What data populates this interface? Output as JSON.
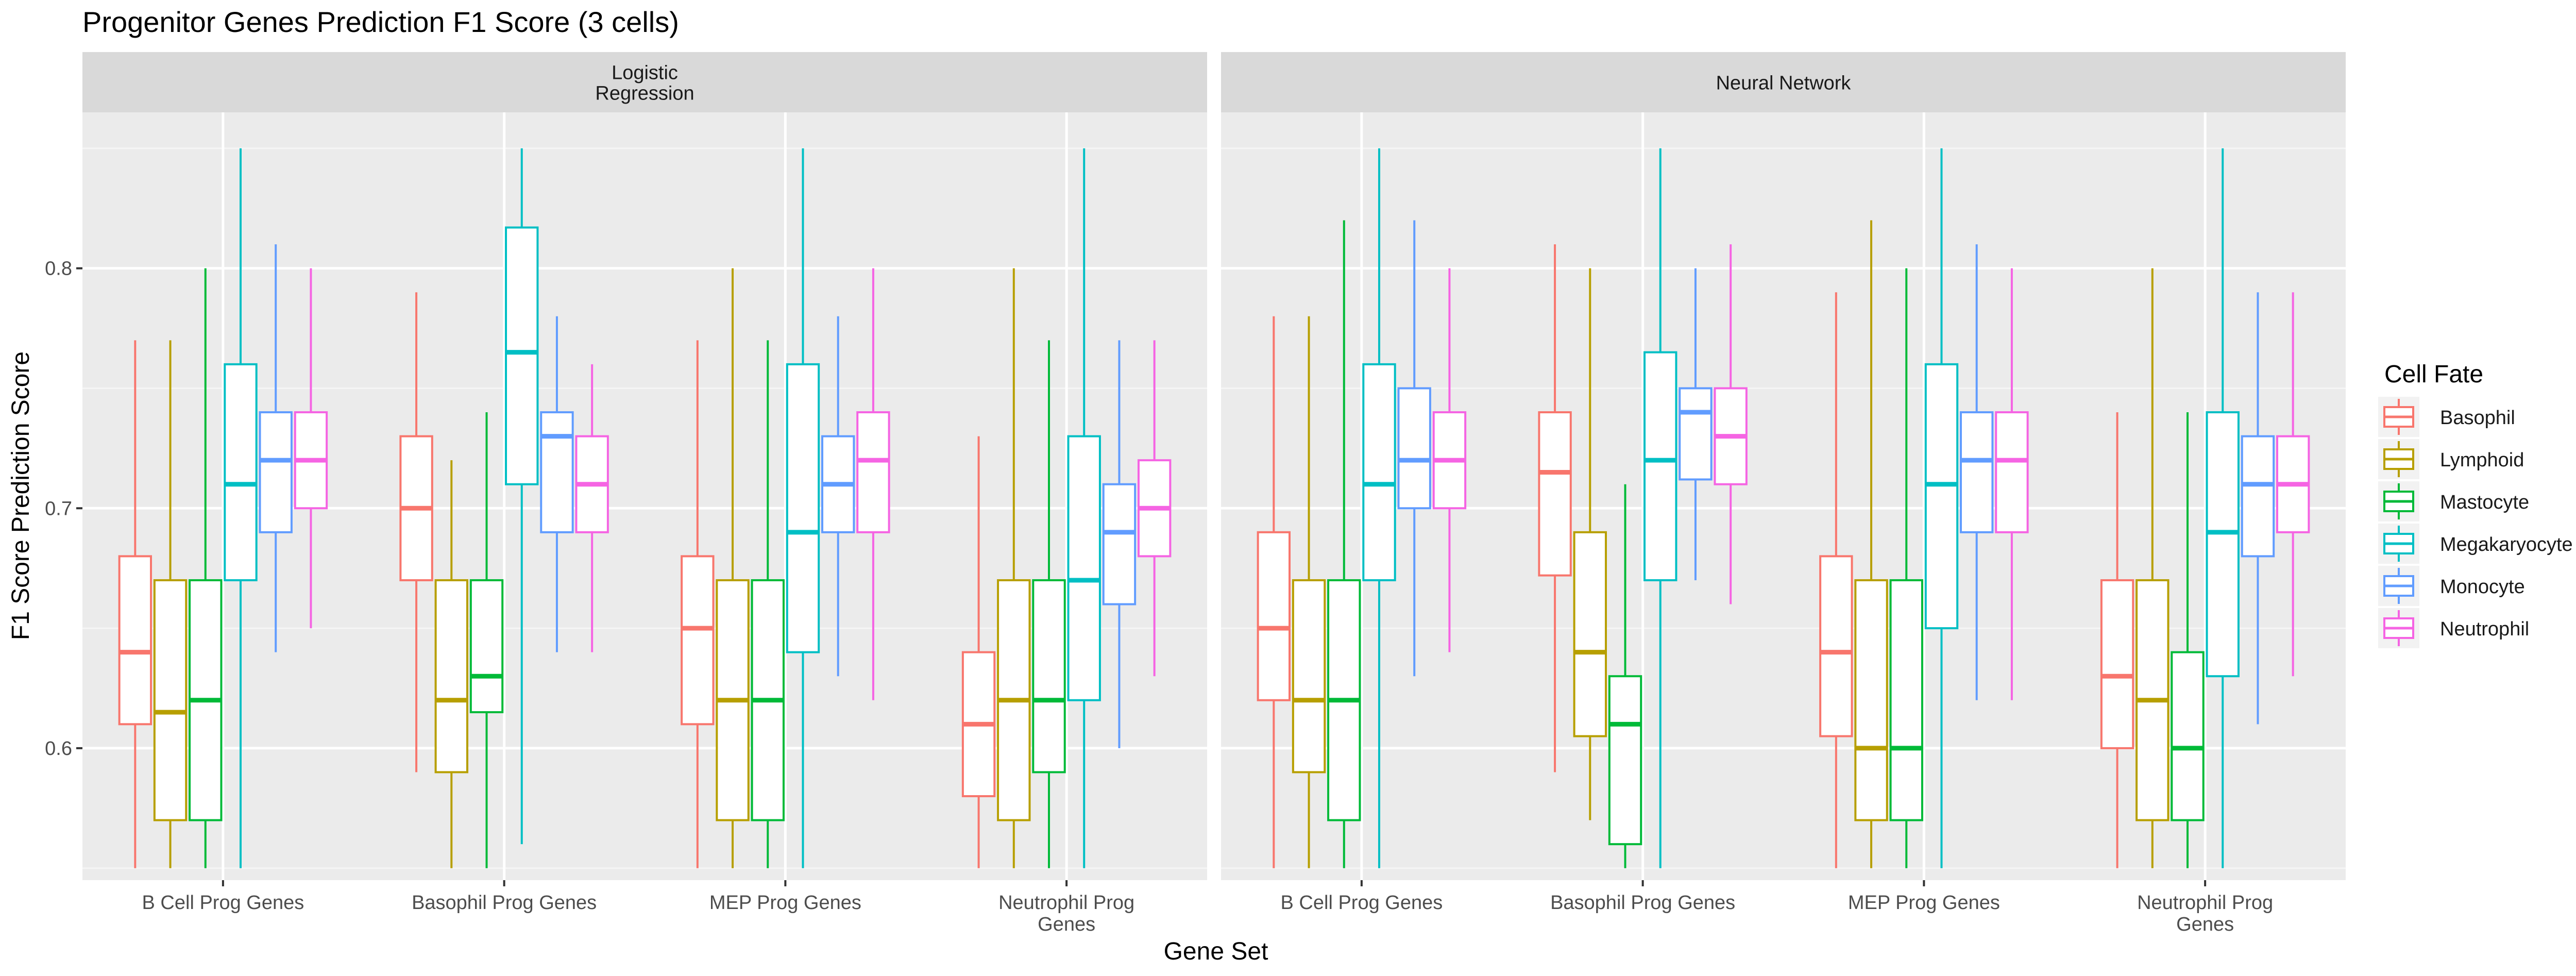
{
  "chart_data": {
    "type": "boxplot",
    "title": "Progenitor Genes Prediction F1 Score (3 cells)",
    "xlabel": "Gene Set",
    "ylabel": "F1 Score Prediction Score",
    "ylim": [
      0.545,
      0.865
    ],
    "y_ticks": [
      0.6,
      0.7,
      0.8
    ],
    "y_tick_labels": [
      "0.6",
      "0.7",
      "0.8"
    ],
    "grid": true,
    "legend_position": "right",
    "legend_title": "Cell Fate",
    "categories": [
      [
        "B Cell Prog Genes"
      ],
      [
        "Basophil Prog Genes"
      ],
      [
        "MEP Prog Genes"
      ],
      [
        "Neutrophil Prog",
        "Genes"
      ]
    ],
    "series": [
      {
        "name": "Basophil",
        "color": "#F8766D"
      },
      {
        "name": "Lymphoid",
        "color": "#B79F00"
      },
      {
        "name": "Mastocyte",
        "color": "#00BA38"
      },
      {
        "name": "Megakaryocyte",
        "color": "#00BFC4"
      },
      {
        "name": "Monocyte",
        "color": "#619CFF"
      },
      {
        "name": "Neutrophil",
        "color": "#F564E3"
      }
    ],
    "panels": [
      {
        "title": [
          "Logistic",
          "Regression"
        ],
        "boxes": [
          [
            [
              0.55,
              0.61,
              0.64,
              0.68,
              0.77
            ],
            [
              0.55,
              0.57,
              0.615,
              0.67,
              0.77
            ],
            [
              0.55,
              0.57,
              0.62,
              0.67,
              0.8
            ],
            [
              0.55,
              0.67,
              0.71,
              0.76,
              0.85
            ],
            [
              0.64,
              0.69,
              0.72,
              0.74,
              0.81
            ],
            [
              0.65,
              0.7,
              0.72,
              0.74,
              0.8
            ]
          ],
          [
            [
              0.59,
              0.67,
              0.7,
              0.73,
              0.79
            ],
            [
              0.55,
              0.59,
              0.62,
              0.67,
              0.72
            ],
            [
              0.55,
              0.615,
              0.63,
              0.67,
              0.74
            ],
            [
              0.56,
              0.71,
              0.765,
              0.817,
              0.85
            ],
            [
              0.64,
              0.69,
              0.73,
              0.74,
              0.78
            ],
            [
              0.64,
              0.69,
              0.71,
              0.73,
              0.76
            ]
          ],
          [
            [
              0.55,
              0.61,
              0.65,
              0.68,
              0.77
            ],
            [
              0.55,
              0.57,
              0.62,
              0.67,
              0.8
            ],
            [
              0.55,
              0.57,
              0.62,
              0.67,
              0.77
            ],
            [
              0.55,
              0.64,
              0.69,
              0.76,
              0.85
            ],
            [
              0.63,
              0.69,
              0.71,
              0.73,
              0.78
            ],
            [
              0.62,
              0.69,
              0.72,
              0.74,
              0.8
            ]
          ],
          [
            [
              0.55,
              0.58,
              0.61,
              0.64,
              0.73
            ],
            [
              0.55,
              0.57,
              0.62,
              0.67,
              0.8
            ],
            [
              0.55,
              0.59,
              0.62,
              0.67,
              0.77
            ],
            [
              0.55,
              0.62,
              0.67,
              0.73,
              0.85
            ],
            [
              0.6,
              0.66,
              0.69,
              0.71,
              0.77
            ],
            [
              0.63,
              0.68,
              0.7,
              0.72,
              0.77
            ]
          ]
        ]
      },
      {
        "title": [
          "Neural Network"
        ],
        "boxes": [
          [
            [
              0.55,
              0.62,
              0.65,
              0.69,
              0.78
            ],
            [
              0.55,
              0.59,
              0.62,
              0.67,
              0.78
            ],
            [
              0.55,
              0.57,
              0.62,
              0.67,
              0.82
            ],
            [
              0.55,
              0.67,
              0.71,
              0.76,
              0.85
            ],
            [
              0.63,
              0.7,
              0.72,
              0.75,
              0.82
            ],
            [
              0.64,
              0.7,
              0.72,
              0.74,
              0.8
            ]
          ],
          [
            [
              0.59,
              0.672,
              0.715,
              0.74,
              0.81
            ],
            [
              0.57,
              0.605,
              0.64,
              0.69,
              0.8
            ],
            [
              0.55,
              0.56,
              0.61,
              0.63,
              0.71
            ],
            [
              0.55,
              0.67,
              0.72,
              0.765,
              0.85
            ],
            [
              0.67,
              0.712,
              0.74,
              0.75,
              0.8
            ],
            [
              0.66,
              0.71,
              0.73,
              0.75,
              0.81
            ]
          ],
          [
            [
              0.55,
              0.605,
              0.64,
              0.68,
              0.79
            ],
            [
              0.55,
              0.57,
              0.6,
              0.67,
              0.82
            ],
            [
              0.55,
              0.57,
              0.6,
              0.67,
              0.8
            ],
            [
              0.55,
              0.65,
              0.71,
              0.76,
              0.85
            ],
            [
              0.62,
              0.69,
              0.72,
              0.74,
              0.81
            ],
            [
              0.62,
              0.69,
              0.72,
              0.74,
              0.8
            ]
          ],
          [
            [
              0.55,
              0.6,
              0.63,
              0.67,
              0.74
            ],
            [
              0.55,
              0.57,
              0.62,
              0.67,
              0.8
            ],
            [
              0.55,
              0.57,
              0.6,
              0.64,
              0.74
            ],
            [
              0.55,
              0.63,
              0.69,
              0.74,
              0.85
            ],
            [
              0.61,
              0.68,
              0.71,
              0.73,
              0.79
            ],
            [
              0.63,
              0.69,
              0.71,
              0.73,
              0.79
            ]
          ]
        ]
      }
    ]
  }
}
